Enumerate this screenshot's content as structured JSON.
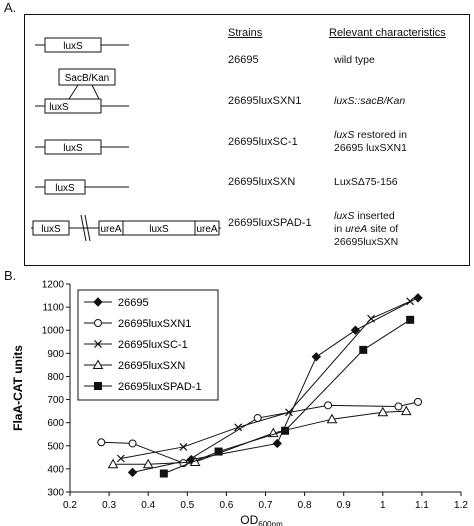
{
  "panelA": {
    "label": "A.",
    "headers": {
      "strains": "Strains",
      "relevant": "Relevant characteristics"
    },
    "gene_labels": {
      "luxS": "luxS",
      "ureA": "ureA",
      "cassette": "SacB/Kan"
    },
    "rows": [
      {
        "strain": "26695",
        "rel_lines": [
          [
            {
              "t": "wild type",
              "i": false
            }
          ]
        ]
      },
      {
        "strain": "26695luxSXN1",
        "rel_lines": [
          [
            {
              "t": "luxS::sacB/Kan",
              "i": true
            }
          ]
        ]
      },
      {
        "strain": "26695luxSC-1",
        "rel_lines": [
          [
            {
              "t": "luxS",
              "i": true
            },
            {
              "t": " restored in",
              "i": false
            }
          ],
          [
            {
              "t": "26695 luxSXN1",
              "i": false
            }
          ]
        ]
      },
      {
        "strain": "26695luxSXN",
        "rel_lines": [
          [
            {
              "t": "LuxSΔ75-156",
              "i": false
            }
          ]
        ]
      },
      {
        "strain": "26695luxSPAD-1",
        "rel_lines": [
          [
            {
              "t": "luxS",
              "i": true
            },
            {
              "t": " inserted",
              "i": false
            }
          ],
          [
            {
              "t": "in ",
              "i": false
            },
            {
              "t": "ureA",
              "i": true
            },
            {
              "t": " site of",
              "i": false
            }
          ],
          [
            {
              "t": "26695luxSXN",
              "i": false
            }
          ]
        ]
      }
    ]
  },
  "panelB": {
    "label": "B."
  },
  "chart_data": {
    "type": "line",
    "xlabel": "OD",
    "xlabel_sub": "600nm",
    "ylabel": "FlaA-CAT units",
    "xlim": [
      0.2,
      1.2
    ],
    "ylim": [
      300,
      1200
    ],
    "xticks": [
      "0.2",
      "0.3",
      "0.4",
      "0.5",
      "0.6",
      "0.7",
      "0.8",
      "0.9",
      "1",
      "1.1",
      "1.2"
    ],
    "yticks": [
      "300",
      "400",
      "500",
      "600",
      "700",
      "800",
      "900",
      "1000",
      "1100",
      "1200"
    ],
    "legend_position": "top-left",
    "grid": false,
    "series": [
      {
        "name": "26695",
        "marker": "diamond-filled",
        "x": [
          0.36,
          0.51,
          0.73,
          0.83,
          0.93,
          1.09
        ],
        "y": [
          385,
          440,
          510,
          885,
          1000,
          1140
        ]
      },
      {
        "name": "26695luxSXN1",
        "marker": "circle-open",
        "x": [
          0.28,
          0.36,
          0.49,
          0.68,
          0.86,
          1.04,
          1.09
        ],
        "y": [
          515,
          510,
          425,
          620,
          675,
          670,
          690
        ]
      },
      {
        "name": "26695luxSC-1",
        "marker": "x",
        "x": [
          0.33,
          0.49,
          0.63,
          0.76,
          0.97,
          1.07
        ],
        "y": [
          445,
          495,
          580,
          645,
          1050,
          1125
        ]
      },
      {
        "name": "26695luxSXN",
        "marker": "triangle-open",
        "x": [
          0.31,
          0.4,
          0.52,
          0.72,
          0.87,
          1.0,
          1.06
        ],
        "y": [
          420,
          420,
          430,
          555,
          615,
          645,
          650
        ]
      },
      {
        "name": "26695luxSPAD-1",
        "marker": "square-filled",
        "x": [
          0.44,
          0.58,
          0.75,
          0.95,
          1.07
        ],
        "y": [
          380,
          475,
          565,
          915,
          1045
        ]
      }
    ]
  }
}
